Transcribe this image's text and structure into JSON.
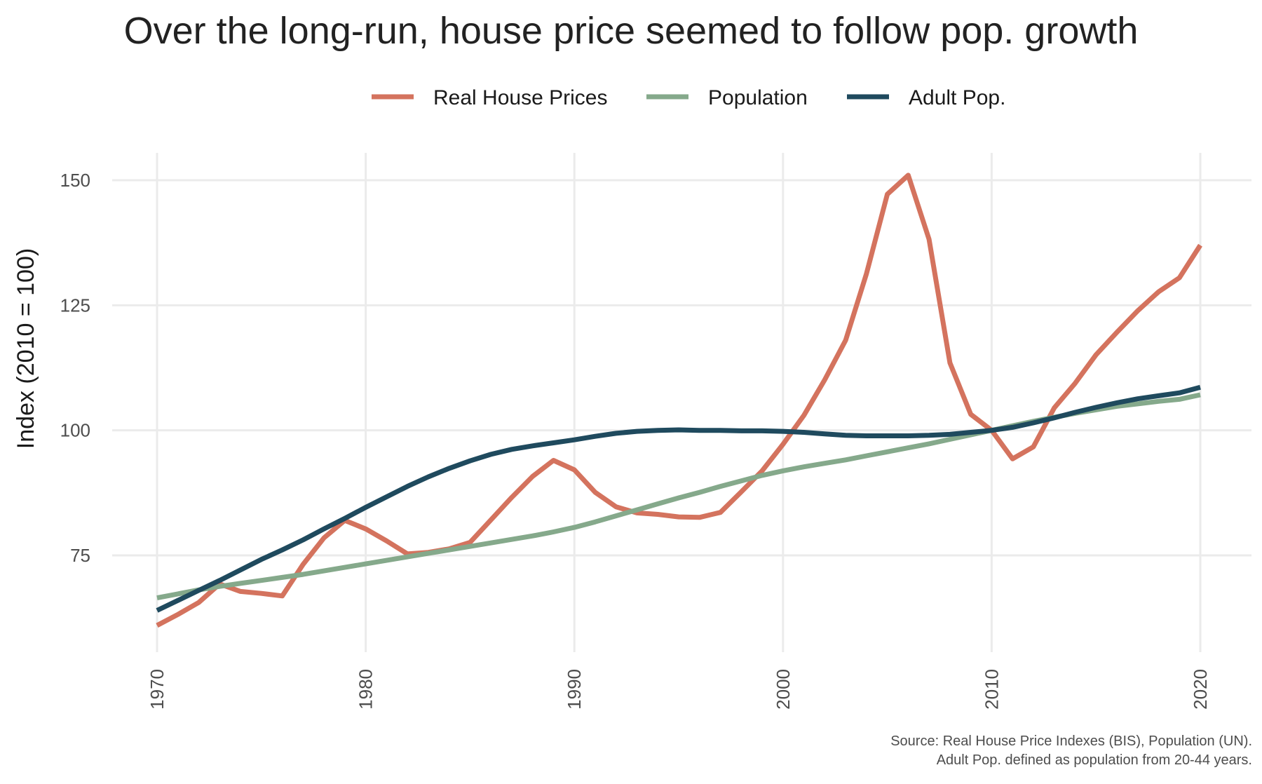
{
  "chart_data": {
    "type": "line",
    "title": "Over the long-run, house price seemed to follow pop. growth",
    "xlabel": "",
    "ylabel": "Index (2010 = 100)",
    "xlim": [
      1970,
      2020
    ],
    "ylim": [
      57,
      155
    ],
    "x_ticks": [
      "1970",
      "1980",
      "1990",
      "2000",
      "2010",
      "2020"
    ],
    "y_ticks": [
      "75",
      "100",
      "125",
      "150"
    ],
    "grid": true,
    "legend_position": "top",
    "caption": [
      "Source: Real House Price Indexes (BIS), Population (UN).",
      "Adult Pop. defined as population from 20-44 years."
    ],
    "x": [
      1970,
      1971,
      1972,
      1973,
      1974,
      1975,
      1976,
      1977,
      1978,
      1979,
      1980,
      1981,
      1982,
      1983,
      1984,
      1985,
      1986,
      1987,
      1988,
      1989,
      1990,
      1991,
      1992,
      1993,
      1994,
      1995,
      1996,
      1997,
      1998,
      1999,
      2000,
      2001,
      2002,
      2003,
      2004,
      2005,
      2006,
      2007,
      2008,
      2009,
      2010,
      2011,
      2012,
      2013,
      2014,
      2015,
      2016,
      2017,
      2018,
      2019,
      2020
    ],
    "series": [
      {
        "name": "Real House Prices",
        "color": "#D4735E",
        "values": [
          61.0,
          63.2,
          65.6,
          69.3,
          67.8,
          67.4,
          66.9,
          73.2,
          78.5,
          82.0,
          80.3,
          77.9,
          75.3,
          75.6,
          76.3,
          77.6,
          82.1,
          86.6,
          90.8,
          94.0,
          92.1,
          87.6,
          84.7,
          83.5,
          83.2,
          82.7,
          82.6,
          83.6,
          87.7,
          91.9,
          97.2,
          103.0,
          110.1,
          118.0,
          131.3,
          147.2,
          151.0,
          138.2,
          113.5,
          103.2,
          100.0,
          94.3,
          96.7,
          104.5,
          109.4,
          115.1,
          119.6,
          123.9,
          127.7,
          130.5,
          137.0
        ]
      },
      {
        "name": "Population",
        "color": "#85A98B",
        "values": [
          66.5,
          67.3,
          68.1,
          68.8,
          69.4,
          70.0,
          70.6,
          71.2,
          71.9,
          72.6,
          73.3,
          74.0,
          74.7,
          75.4,
          76.1,
          76.8,
          77.5,
          78.2,
          78.9,
          79.7,
          80.6,
          81.7,
          82.9,
          84.1,
          85.3,
          86.5,
          87.6,
          88.8,
          89.9,
          91.0,
          91.9,
          92.7,
          93.4,
          94.1,
          94.9,
          95.7,
          96.5,
          97.3,
          98.2,
          99.1,
          100.0,
          100.9,
          101.8,
          102.6,
          103.4,
          104.1,
          104.8,
          105.3,
          105.8,
          106.2,
          107.1
        ]
      },
      {
        "name": "Adult Pop.",
        "color": "#1F4A5E",
        "values": [
          64.0,
          66.0,
          68.0,
          70.0,
          72.1,
          74.2,
          76.1,
          78.1,
          80.3,
          82.4,
          84.6,
          86.7,
          88.8,
          90.7,
          92.4,
          93.9,
          95.2,
          96.2,
          96.9,
          97.5,
          98.1,
          98.8,
          99.4,
          99.8,
          100.0,
          100.1,
          100.0,
          100.0,
          99.9,
          99.9,
          99.8,
          99.6,
          99.3,
          99.0,
          98.9,
          98.9,
          98.9,
          99.0,
          99.2,
          99.6,
          100.0,
          100.6,
          101.5,
          102.5,
          103.6,
          104.6,
          105.5,
          106.3,
          106.9,
          107.5,
          108.6
        ]
      }
    ]
  }
}
